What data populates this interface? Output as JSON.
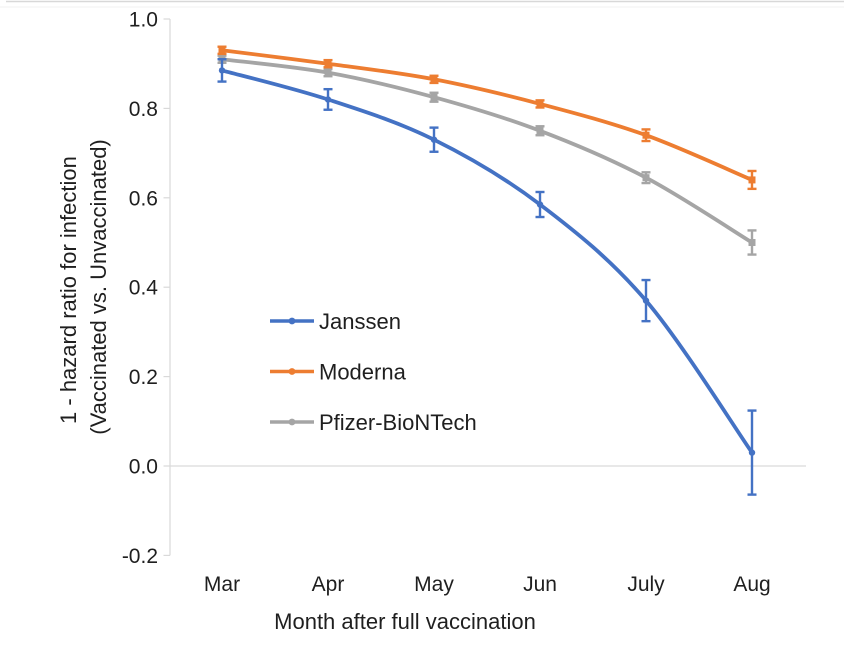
{
  "figure": {
    "description": "Line chart of vaccine effectiveness (1 - hazard ratio for infection) by month after full vaccination, with error bars, for three vaccines"
  },
  "colors": {
    "janssen_blue": "#4472C4",
    "moderna_orange": "#ED7D31",
    "pfizer_gray": "#A5A5A5",
    "axis_gray": "#D9D9D9",
    "text_dark": "#1f1f1f",
    "window_border": "#DCDCDC"
  },
  "chart_data": {
    "type": "line",
    "title": "",
    "xlabel": "Month after full vaccination",
    "ylabel": "1 - hazard ratio for infection (Vaccinated vs. Unvaccinated)",
    "ylabel_lines": [
      "1 - hazard ratio for infection",
      "(Vaccinated vs. Unvaccinated)"
    ],
    "categories": [
      "Mar",
      "Apr",
      "May",
      "Jun",
      "July",
      "Aug"
    ],
    "series": [
      {
        "name": "Janssen",
        "color": "#4472C4",
        "marker": "circle",
        "values": [
          0.885,
          0.82,
          0.73,
          0.585,
          0.37,
          0.03
        ],
        "errors": [
          0.025,
          0.023,
          0.027,
          0.028,
          0.046,
          0.094
        ]
      },
      {
        "name": "Moderna",
        "color": "#ED7D31",
        "marker": "square",
        "values": [
          0.93,
          0.9,
          0.865,
          0.81,
          0.74,
          0.64
        ],
        "errors": [
          0.008,
          0.008,
          0.008,
          0.008,
          0.013,
          0.02
        ]
      },
      {
        "name": "Pfizer-BioNTech",
        "color": "#A5A5A5",
        "marker": "square",
        "values": [
          0.91,
          0.88,
          0.825,
          0.75,
          0.645,
          0.5
        ],
        "errors": [
          0.008,
          0.008,
          0.01,
          0.01,
          0.012,
          0.027
        ]
      }
    ],
    "yticks": [
      1.0,
      0.8,
      0.6,
      0.4,
      0.2,
      0.0,
      -0.2
    ],
    "ytick_labels": [
      "1.0",
      "0.8",
      "0.6",
      "0.4",
      "0.2",
      "0.0",
      "-0.2"
    ],
    "ylim": [
      -0.2,
      1.0
    ],
    "grid": "horizontal line at y=0 only",
    "legend_position": "inside plot, center-left",
    "smoothed_lines": true,
    "error_bars": true
  }
}
